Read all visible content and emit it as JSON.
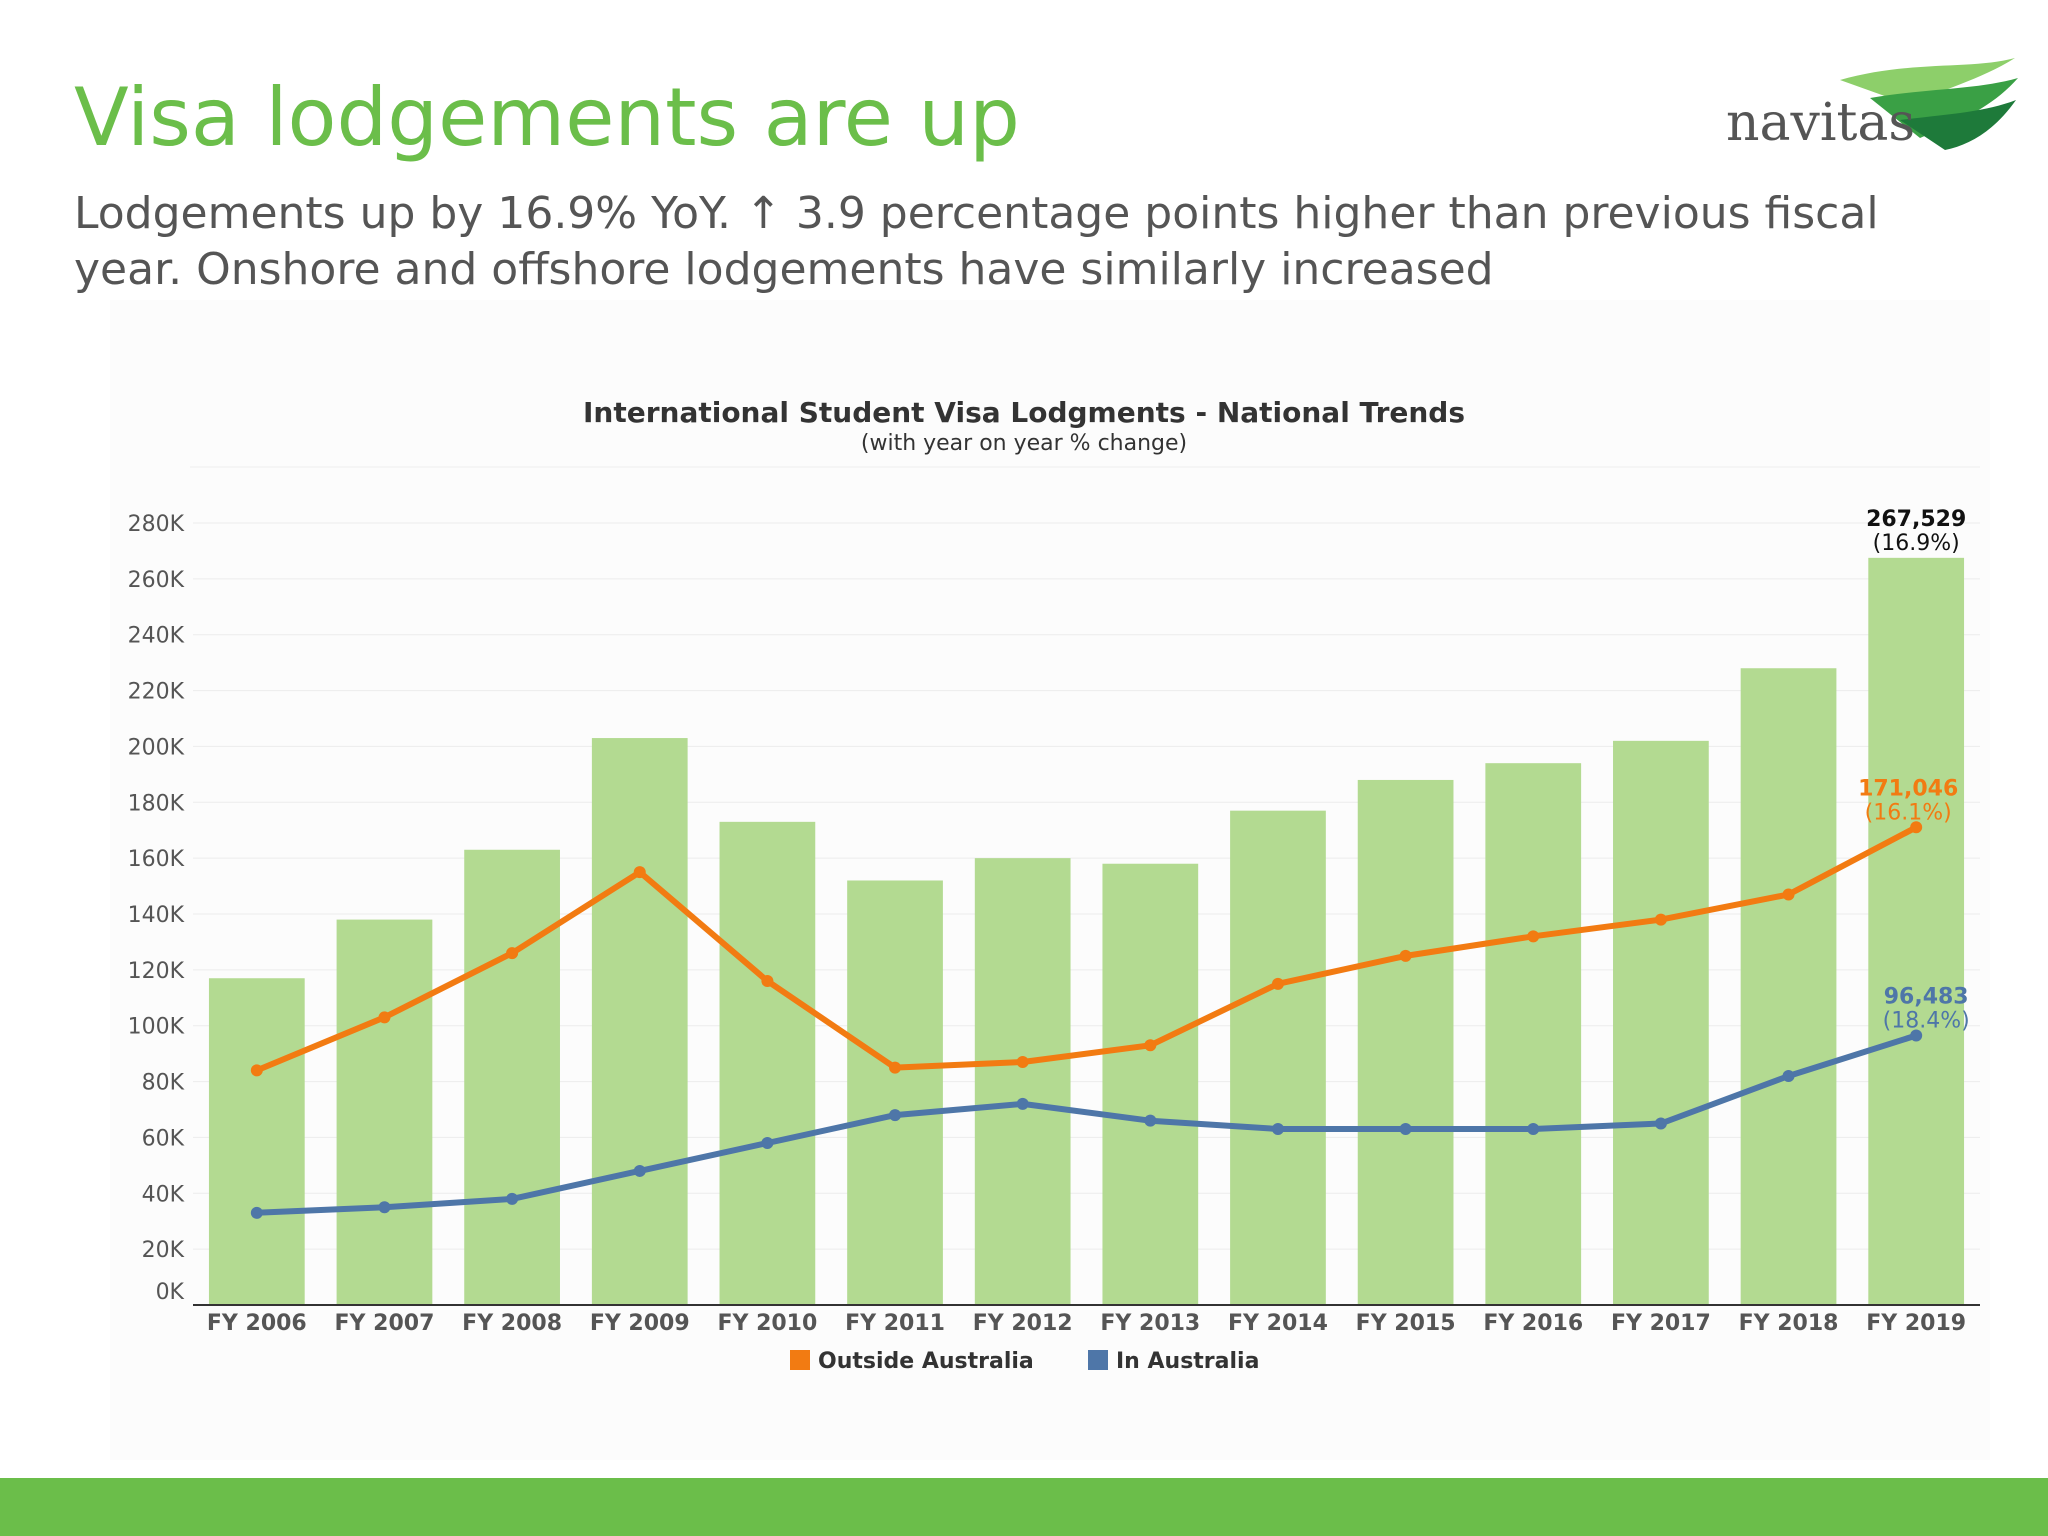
{
  "slide": {
    "title": "Visa lodgements are up",
    "subtitle": "Lodgements up by 16.9% YoY. ↑ 3.9 percentage points higher than previous fiscal year. Onshore and offshore lodgements have similarly increased",
    "logo_text": "navitas",
    "colors": {
      "title": "#6bbe4a",
      "footer": "#6bbe4a",
      "subtitle": "#555555"
    }
  },
  "chart_data": {
    "type": "bar",
    "title": "International Student Visa Lodgments - National Trends",
    "subtitle": "(with year on year % change)",
    "xlabel": "",
    "ylabel": "",
    "ylim": [
      0,
      280000
    ],
    "grid": true,
    "legend_position": "bottom",
    "categories": [
      "FY 2006",
      "FY 2007",
      "FY 2008",
      "FY 2009",
      "FY 2010",
      "FY 2011",
      "FY 2012",
      "FY 2013",
      "FY 2014",
      "FY 2015",
      "FY 2016",
      "FY 2017",
      "FY 2018",
      "FY 2019"
    ],
    "yticks": [
      {
        "value": 0,
        "label": "0K"
      },
      {
        "value": 20000,
        "label": "20K"
      },
      {
        "value": 40000,
        "label": "40K"
      },
      {
        "value": 60000,
        "label": "60K"
      },
      {
        "value": 80000,
        "label": "80K"
      },
      {
        "value": 100000,
        "label": "100K"
      },
      {
        "value": 120000,
        "label": "120K"
      },
      {
        "value": 140000,
        "label": "140K"
      },
      {
        "value": 160000,
        "label": "160K"
      },
      {
        "value": 180000,
        "label": "180K"
      },
      {
        "value": 200000,
        "label": "200K"
      },
      {
        "value": 220000,
        "label": "220K"
      },
      {
        "value": 240000,
        "label": "240K"
      },
      {
        "value": 260000,
        "label": "260K"
      },
      {
        "value": 280000,
        "label": "280K"
      }
    ],
    "bars": {
      "color": "#b3da91",
      "values": [
        117000,
        138000,
        163000,
        203000,
        173000,
        152000,
        160000,
        158000,
        177000,
        188000,
        194000,
        202000,
        228000,
        267529
      ],
      "end_label": "267,529",
      "end_change": "(16.9%)",
      "label_color": "#111111"
    },
    "series": [
      {
        "name": "Outside Australia",
        "color": "#f27b12",
        "values": [
          84000,
          103000,
          126000,
          155000,
          116000,
          85000,
          87000,
          93000,
          115000,
          125000,
          132000,
          138000,
          147000,
          171046
        ],
        "end_label": "171,046",
        "end_change": "(16.1%)"
      },
      {
        "name": "In Australia",
        "color": "#4e76a8",
        "values": [
          33000,
          35000,
          38000,
          48000,
          58000,
          68000,
          72000,
          66000,
          63000,
          63000,
          63000,
          65000,
          82000,
          96483
        ],
        "end_label": "96,483",
        "end_change": "(18.4%)"
      }
    ]
  }
}
